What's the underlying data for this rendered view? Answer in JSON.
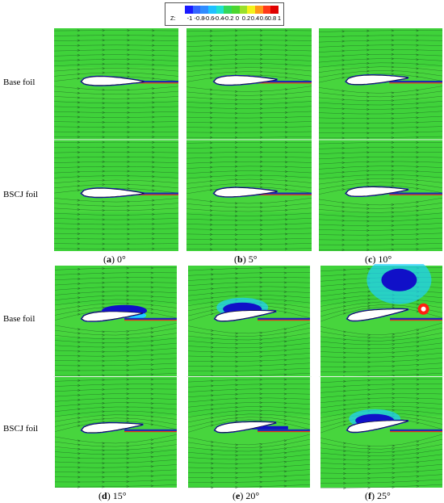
{
  "colorbar": {
    "label": "Z:",
    "ticks": [
      "-1",
      "-0.8",
      "-0.6",
      "-0.4",
      "-0.2",
      "0",
      "0.2",
      "0.4",
      "0.6",
      "0.8",
      "1"
    ],
    "colors": [
      "#1a1aff",
      "#3366ff",
      "#2f8cff",
      "#1fc0ff",
      "#22e0d0",
      "#33d85a",
      "#4bd62f",
      "#9be02a",
      "#f3f21a",
      "#ff9a1a",
      "#ff3a1a",
      "#e00000"
    ]
  },
  "row_labels": {
    "top_base": "Base foil",
    "top_bscj": "BSCJ foil",
    "bottom_base": "Base foil",
    "bottom_bscj": "BSCJ foil"
  },
  "captions": [
    {
      "letter": "a",
      "text": "0°"
    },
    {
      "letter": "b",
      "text": "5°"
    },
    {
      "letter": "c",
      "text": "10°"
    },
    {
      "letter": "d",
      "text": "15°"
    },
    {
      "letter": "e",
      "text": "20°"
    },
    {
      "letter": "f",
      "text": "25°"
    }
  ],
  "panels": [
    {
      "id": "a",
      "angle_deg": 0,
      "base_vortex": "none",
      "bscj_vortex": "none"
    },
    {
      "id": "b",
      "angle_deg": 5,
      "base_vortex": "none",
      "bscj_vortex": "none"
    },
    {
      "id": "c",
      "angle_deg": 10,
      "base_vortex": "none",
      "bscj_vortex": "none"
    },
    {
      "id": "d",
      "angle_deg": 15,
      "base_vortex": "small",
      "bscj_vortex": "none"
    },
    {
      "id": "e",
      "angle_deg": 20,
      "base_vortex": "medium",
      "bscj_vortex": "thin"
    },
    {
      "id": "f",
      "angle_deg": 25,
      "base_vortex": "large",
      "bscj_vortex": "medium"
    }
  ],
  "colors": {
    "field": "#3fd23a",
    "field_light": "#55dd46",
    "streamline": "#1d5a22",
    "foil": "#ffffff",
    "vortex": "#1010c8",
    "cyan": "#20d0ff",
    "red": "#ff2010",
    "frame_bottom": "#9af3f0"
  }
}
